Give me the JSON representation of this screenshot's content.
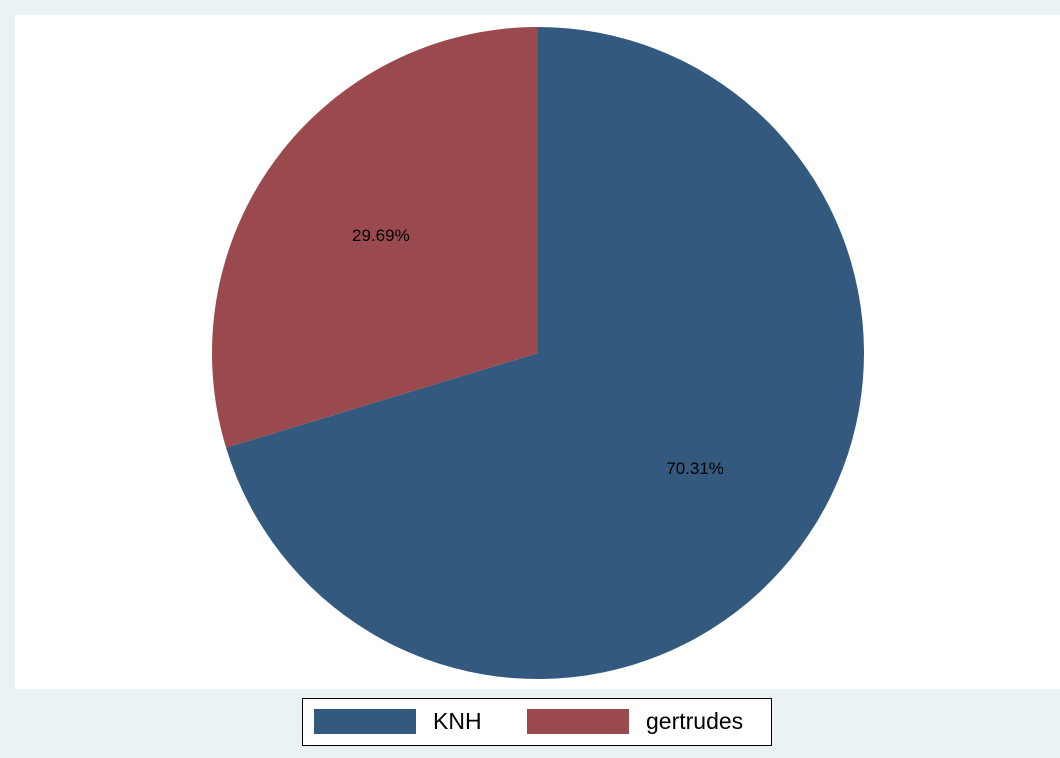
{
  "chart_data": {
    "type": "pie",
    "slices": [
      {
        "name": "KNH",
        "value": 70.31,
        "label": "70.31%",
        "color": "#335a7e"
      },
      {
        "name": "gertrudes",
        "value": 29.69,
        "label": "29.69%",
        "color": "#9a4a4e"
      }
    ],
    "legend": {
      "placement": "bottom",
      "entries": [
        "KNH",
        "gertrudes"
      ]
    },
    "start": "12 o'clock",
    "direction": "clockwise",
    "background_color": "#eaf2f3",
    "plot_color": "#ffffff"
  }
}
